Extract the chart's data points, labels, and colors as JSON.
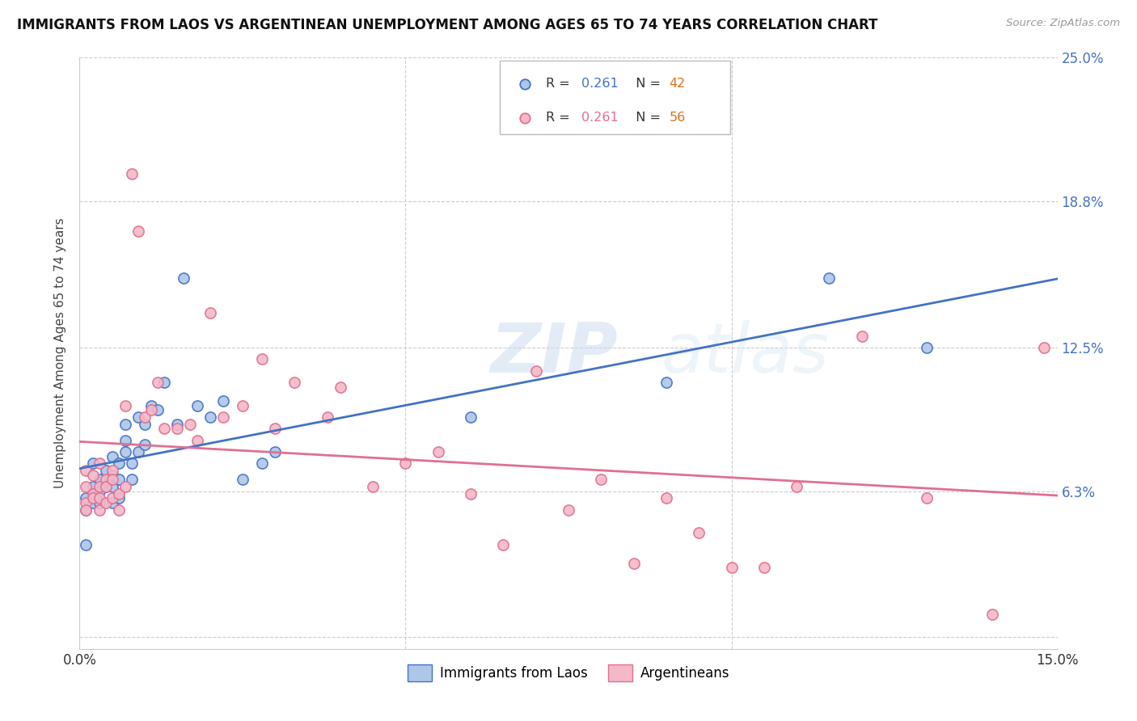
{
  "title": "IMMIGRANTS FROM LAOS VS ARGENTINEAN UNEMPLOYMENT AMONG AGES 65 TO 74 YEARS CORRELATION CHART",
  "source": "Source: ZipAtlas.com",
  "ylabel": "Unemployment Among Ages 65 to 74 years",
  "xmin": 0.0,
  "xmax": 0.15,
  "ymin": -0.005,
  "ymax": 0.25,
  "ytick_positions": [
    0.0,
    0.063,
    0.125,
    0.188,
    0.25
  ],
  "xtick_positions": [
    0.0,
    0.05,
    0.1,
    0.15
  ],
  "color_laos": "#aec6e8",
  "color_arg": "#f4b8c8",
  "color_laos_edge": "#4472c4",
  "color_arg_edge": "#e07090",
  "color_laos_line": "#4472c4",
  "color_arg_line": "#e07090",
  "color_r_blue": "#4472c4",
  "color_n_orange": "#e07020",
  "color_r_pink": "#e07090",
  "color_right_labels": "#4472c4",
  "color_title": "#111111",
  "color_source": "#999999",
  "watermark_text": "ZIPatlas",
  "laos_x": [
    0.001,
    0.001,
    0.001,
    0.002,
    0.002,
    0.002,
    0.003,
    0.003,
    0.003,
    0.004,
    0.004,
    0.005,
    0.005,
    0.005,
    0.005,
    0.006,
    0.006,
    0.006,
    0.007,
    0.007,
    0.007,
    0.008,
    0.008,
    0.009,
    0.009,
    0.01,
    0.01,
    0.011,
    0.012,
    0.013,
    0.015,
    0.016,
    0.018,
    0.02,
    0.022,
    0.025,
    0.028,
    0.03,
    0.06,
    0.09,
    0.115,
    0.13
  ],
  "laos_y": [
    0.055,
    0.06,
    0.04,
    0.058,
    0.065,
    0.075,
    0.063,
    0.068,
    0.058,
    0.065,
    0.072,
    0.058,
    0.065,
    0.07,
    0.078,
    0.06,
    0.068,
    0.075,
    0.08,
    0.085,
    0.092,
    0.068,
    0.075,
    0.08,
    0.095,
    0.083,
    0.092,
    0.1,
    0.098,
    0.11,
    0.092,
    0.155,
    0.1,
    0.095,
    0.102,
    0.068,
    0.075,
    0.08,
    0.095,
    0.11,
    0.155,
    0.125
  ],
  "arg_x": [
    0.001,
    0.001,
    0.001,
    0.001,
    0.002,
    0.002,
    0.002,
    0.003,
    0.003,
    0.003,
    0.003,
    0.004,
    0.004,
    0.004,
    0.005,
    0.005,
    0.005,
    0.006,
    0.006,
    0.007,
    0.007,
    0.008,
    0.009,
    0.01,
    0.011,
    0.012,
    0.013,
    0.015,
    0.017,
    0.018,
    0.02,
    0.022,
    0.025,
    0.028,
    0.03,
    0.033,
    0.038,
    0.04,
    0.045,
    0.05,
    0.055,
    0.06,
    0.065,
    0.07,
    0.075,
    0.08,
    0.085,
    0.09,
    0.095,
    0.1,
    0.105,
    0.11,
    0.12,
    0.13,
    0.14,
    0.148
  ],
  "arg_y": [
    0.058,
    0.065,
    0.072,
    0.055,
    0.062,
    0.07,
    0.06,
    0.065,
    0.055,
    0.06,
    0.075,
    0.068,
    0.058,
    0.065,
    0.06,
    0.072,
    0.068,
    0.062,
    0.055,
    0.065,
    0.1,
    0.2,
    0.175,
    0.095,
    0.098,
    0.11,
    0.09,
    0.09,
    0.092,
    0.085,
    0.14,
    0.095,
    0.1,
    0.12,
    0.09,
    0.11,
    0.095,
    0.108,
    0.065,
    0.075,
    0.08,
    0.062,
    0.04,
    0.115,
    0.055,
    0.068,
    0.032,
    0.06,
    0.045,
    0.03,
    0.03,
    0.065,
    0.13,
    0.06,
    0.01,
    0.125
  ]
}
